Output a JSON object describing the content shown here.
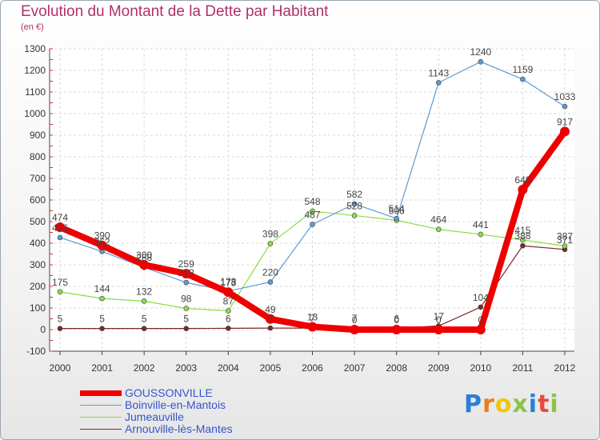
{
  "title": "Evolution du Montant de la Dette par Habitant",
  "subtitle": "(en €)",
  "logo": {
    "text": "Proxiti",
    "colors": [
      "#2b7fd8",
      "#e67e22",
      "#f1c40f",
      "#8bc34a",
      "#2b7fd8",
      "#e74c3c",
      "#8bc34a"
    ]
  },
  "chart_data": {
    "type": "line",
    "x": [
      "2000",
      "2001",
      "2002",
      "2003",
      "2004",
      "2005",
      "2006",
      "2007",
      "2008",
      "2009",
      "2010",
      "2011",
      "2012"
    ],
    "ylim": [
      -100,
      1300
    ],
    "yticks": [
      "-100",
      "0",
      "100",
      "200",
      "300",
      "400",
      "500",
      "600",
      "700",
      "800",
      "900",
      "1000",
      "1100",
      "1200",
      "1300"
    ],
    "grid": true,
    "legend_position": "bottom-left",
    "series": [
      {
        "name": "GOUSSONVILLE",
        "color": "#ee0000",
        "values": [
          474,
          390,
          300,
          259,
          173,
          49,
          13,
          0,
          0,
          0,
          0,
          648,
          917
        ],
        "labels": [
          "474",
          "390",
          "300",
          "259",
          "173",
          "49",
          "13",
          "0",
          "0",
          "0",
          "0",
          "648",
          "917"
        ]
      },
      {
        "name": "Boinville-en-Mantois",
        "color": "#5b9bd5",
        "values": [
          426,
          362,
          288,
          218,
          178,
          220,
          487,
          582,
          514,
          1143,
          1240,
          1159,
          1033
        ],
        "labels": [
          "426",
          "362",
          "288",
          "218",
          "178",
          "220",
          "487",
          "582",
          "514",
          "1143",
          "1240",
          "1159",
          "1033"
        ]
      },
      {
        "name": "Jumeauville",
        "color": "#88dd44",
        "values": [
          175,
          144,
          132,
          98,
          87,
          398,
          548,
          528,
          506,
          464,
          441,
          415,
          387
        ],
        "labels": [
          "175",
          "144",
          "132",
          "98",
          "87",
          "398",
          "548",
          "528",
          "506",
          "464",
          "441",
          "415",
          "387"
        ]
      },
      {
        "name": "Arnouville-lès-Mantes",
        "color": "#7a2a2a",
        "values": [
          5,
          5,
          5,
          5,
          6,
          7,
          7,
          7,
          6,
          17,
          104,
          388,
          371
        ],
        "labels": [
          "5",
          "5",
          "5",
          "5",
          "6",
          "7",
          "7",
          "7",
          "6",
          "17",
          "104",
          "388",
          "371"
        ]
      }
    ]
  }
}
